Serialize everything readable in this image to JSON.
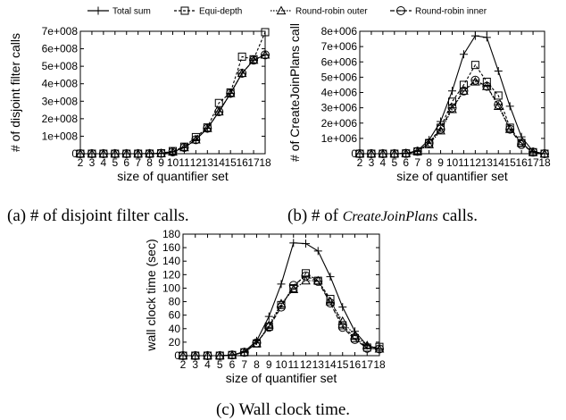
{
  "legend": [
    {
      "name": "Total sum",
      "marker": "plus"
    },
    {
      "name": "Equi-depth",
      "marker": "square"
    },
    {
      "name": "Round-robin outer",
      "marker": "triangle"
    },
    {
      "name": "Round-robin inner",
      "marker": "circle"
    }
  ],
  "captions": {
    "a": "(a) # of disjoint filter calls.",
    "b_prefix": "(b) # of ",
    "b_italic": "CreateJoinPlans",
    "b_suffix": " calls.",
    "c": "(c) Wall clock time."
  },
  "chart_data": [
    {
      "id": "a",
      "type": "line",
      "title": "",
      "xlabel": "size of quantifier set",
      "ylabel": "# of disjoint filter calls",
      "x": [
        2,
        3,
        4,
        5,
        6,
        7,
        8,
        9,
        10,
        11,
        12,
        13,
        14,
        15,
        16,
        17,
        18
      ],
      "xlim": [
        2,
        18
      ],
      "ylim": [
        0,
        700000000
      ],
      "yticks": [
        0,
        100000000,
        200000000,
        300000000,
        400000000,
        500000000,
        600000000,
        700000000
      ],
      "yticklabels": [
        "0",
        "1e+008",
        "2e+008",
        "3e+008",
        "4e+008",
        "5e+008",
        "6e+008",
        "7e+008"
      ],
      "grid": false,
      "series": [
        {
          "name": "Total sum",
          "marker": "plus",
          "dash": "",
          "values": [
            0,
            0,
            0,
            0,
            0,
            0,
            200000,
            2000000,
            10000000,
            35000000,
            80000000,
            145000000,
            240000000,
            345000000,
            460000000,
            535000000,
            565000000
          ]
        },
        {
          "name": "Equi-depth",
          "marker": "square",
          "dash": "3,2",
          "values": [
            0,
            0,
            0,
            0,
            0,
            0,
            300000,
            2500000,
            15000000,
            40000000,
            95000000,
            150000000,
            290000000,
            350000000,
            555000000,
            540000000,
            695000000
          ]
        },
        {
          "name": "Round-robin outer",
          "marker": "triangle",
          "dash": "1.5,1.5",
          "values": [
            0,
            0,
            0,
            0,
            0,
            0,
            200000,
            2000000,
            10000000,
            35000000,
            80000000,
            145000000,
            240000000,
            345000000,
            460000000,
            535000000,
            565000000
          ]
        },
        {
          "name": "Round-robin inner",
          "marker": "circle",
          "dash": "5,2",
          "values": [
            0,
            0,
            0,
            0,
            0,
            0,
            200000,
            2000000,
            10000000,
            35000000,
            80000000,
            145000000,
            240000000,
            345000000,
            460000000,
            535000000,
            565000000
          ]
        }
      ]
    },
    {
      "id": "b",
      "type": "line",
      "title": "",
      "xlabel": "size of quantifier set",
      "ylabel": "# of CreateJoinPlans call",
      "x": [
        2,
        3,
        4,
        5,
        6,
        7,
        8,
        9,
        10,
        11,
        12,
        13,
        14,
        15,
        16,
        17,
        18
      ],
      "xlim": [
        2,
        18
      ],
      "ylim": [
        0,
        8000000
      ],
      "yticks": [
        0,
        1000000,
        2000000,
        3000000,
        4000000,
        5000000,
        6000000,
        7000000,
        8000000
      ],
      "yticklabels": [
        "0",
        "1e+006",
        "2e+006",
        "3e+006",
        "4e+006",
        "5e+006",
        "6e+006",
        "7e+006",
        "8e+006"
      ],
      "grid": false,
      "series": [
        {
          "name": "Total sum",
          "marker": "plus",
          "dash": "",
          "values": [
            0,
            0,
            0,
            0,
            20000,
            200000,
            900000,
            2100000,
            4100000,
            6500000,
            7700000,
            7600000,
            5400000,
            3100000,
            1100000,
            150000,
            0
          ]
        },
        {
          "name": "Equi-depth",
          "marker": "square",
          "dash": "3,2",
          "values": [
            0,
            0,
            0,
            0,
            20000,
            150000,
            700000,
            1700000,
            3400000,
            4500000,
            5800000,
            4700000,
            3800000,
            1700000,
            700000,
            100000,
            0
          ]
        },
        {
          "name": "Round-robin outer",
          "marker": "triangle",
          "dash": "1.5,1.5",
          "values": [
            0,
            0,
            0,
            0,
            20000,
            150000,
            600000,
            1500000,
            2900000,
            4100000,
            4700000,
            4400000,
            3100000,
            1600000,
            700000,
            100000,
            0
          ]
        },
        {
          "name": "Round-robin inner",
          "marker": "circle",
          "dash": "5,2",
          "values": [
            0,
            0,
            0,
            0,
            20000,
            150000,
            700000,
            1600000,
            3000000,
            4100000,
            4800000,
            4400000,
            3200000,
            1600000,
            600000,
            100000,
            0
          ]
        }
      ]
    },
    {
      "id": "c",
      "type": "line",
      "title": "",
      "xlabel": "size of quantifier set",
      "ylabel": "wall clock time (sec)",
      "x": [
        2,
        3,
        4,
        5,
        6,
        7,
        8,
        9,
        10,
        11,
        12,
        13,
        14,
        15,
        16,
        17,
        18
      ],
      "xlim": [
        2,
        18
      ],
      "ylim": [
        0,
        180
      ],
      "yticks": [
        0,
        20,
        40,
        60,
        80,
        100,
        120,
        140,
        160,
        180
      ],
      "yticklabels": [
        "0",
        "20",
        "40",
        "60",
        "80",
        "100",
        "120",
        "140",
        "160",
        "180"
      ],
      "grid": false,
      "series": [
        {
          "name": "Total sum",
          "marker": "plus",
          "dash": "",
          "values": [
            0,
            0,
            0,
            0,
            1,
            6,
            22,
            58,
            106,
            167,
            166,
            155,
            117,
            72,
            36,
            15,
            10
          ]
        },
        {
          "name": "Equi-depth",
          "marker": "square",
          "dash": "3,2",
          "values": [
            0,
            0,
            0,
            0,
            1,
            5,
            18,
            43,
            75,
            100,
            122,
            111,
            84,
            45,
            26,
            12,
            13
          ]
        },
        {
          "name": "Round-robin outer",
          "marker": "triangle",
          "dash": "1.5,1.5",
          "values": [
            0,
            0,
            0,
            0,
            1,
            5,
            18,
            45,
            77,
            98,
            111,
            111,
            80,
            51,
            30,
            15,
            10
          ]
        },
        {
          "name": "Round-robin inner",
          "marker": "circle",
          "dash": "5,2",
          "values": [
            0,
            0,
            0,
            0,
            1,
            5,
            19,
            42,
            72,
            104,
            118,
            110,
            78,
            42,
            24,
            11,
            10
          ]
        }
      ]
    }
  ]
}
